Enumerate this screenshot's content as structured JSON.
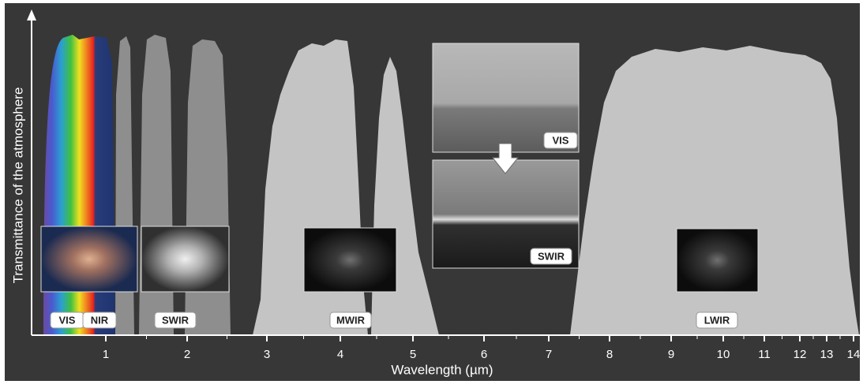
{
  "axes": {
    "y_label": "Transmittance of the atmosphere",
    "x_label": "Wavelength (µm)",
    "x_ticks": [
      "1",
      "2",
      "3",
      "4",
      "5",
      "6",
      "7",
      "8",
      "9",
      "10",
      "11",
      "12",
      "13",
      "14"
    ]
  },
  "bands": [
    "VIS",
    "NIR",
    "SWIR",
    "MWIR",
    "LWIR"
  ],
  "photos": [
    "VIS",
    "SWIR"
  ]
}
